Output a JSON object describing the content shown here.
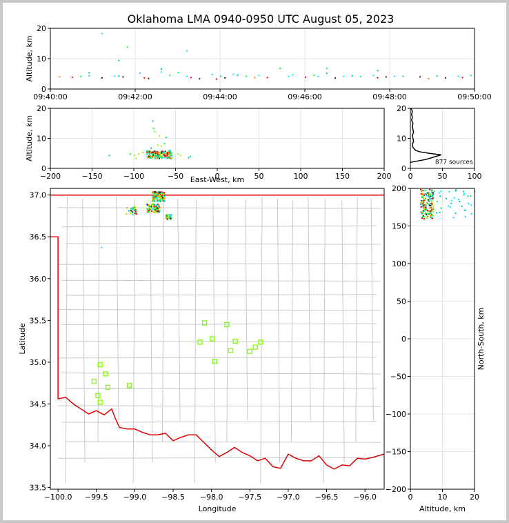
{
  "title": "Oklahoma LMA 0940-0950 UTC August 05, 2023",
  "colors": {
    "state_border": "#e00000",
    "county_lines": "#c8c8c8",
    "station_marker": "#7cfc00",
    "grid": "#e6e6e6",
    "source_palette": [
      "#00e5ff",
      "#00c8a0",
      "#00ff40",
      "#80ff00",
      "#c0e000",
      "#ff8000",
      "#ff0000",
      "#202020"
    ]
  },
  "chart_data": [
    {
      "id": "time_altitude",
      "type": "scatter",
      "ylabel": "Altitude, km",
      "ylim": [
        0,
        20
      ],
      "yticks": [
        "0",
        "10",
        "20"
      ],
      "xticks": [
        "09:40:00",
        "09:42:00",
        "09:44:00",
        "09:46:00",
        "09:48:00",
        "09:50:00"
      ],
      "grid": true,
      "points_minutes_after_0940": [
        [
          1.2,
          18.5
        ],
        [
          1.6,
          9.6
        ],
        [
          1.8,
          14
        ],
        [
          3.2,
          12.8
        ],
        [
          7.7,
          6.3
        ],
        [
          6.5,
          7.0
        ],
        [
          0.2,
          4.2
        ],
        [
          0.5,
          4.1
        ],
        [
          0.7,
          4.3
        ],
        [
          0.9,
          4.6
        ],
        [
          0.9,
          5.6
        ],
        [
          1.2,
          3.9
        ],
        [
          1.5,
          4.4
        ],
        [
          1.6,
          4.5
        ],
        [
          1.7,
          4.2
        ],
        [
          2.1,
          5.5
        ],
        [
          2.2,
          3.9
        ],
        [
          2.3,
          3.7
        ],
        [
          2.6,
          5.8
        ],
        [
          2.6,
          6.8
        ],
        [
          3.0,
          5.7
        ],
        [
          3.2,
          4.3
        ],
        [
          3.3,
          4.0
        ],
        [
          3.5,
          3.6
        ],
        [
          3.8,
          5.0
        ],
        [
          4.0,
          4.4
        ],
        [
          4.1,
          3.9
        ],
        [
          4.3,
          5.1
        ],
        [
          4.4,
          4.8
        ],
        [
          4.6,
          4.4
        ],
        [
          4.9,
          4.7
        ],
        [
          5.1,
          4.0
        ],
        [
          5.4,
          7.0
        ],
        [
          5.7,
          4.9
        ],
        [
          6.0,
          4.1
        ],
        [
          6.2,
          4.8
        ],
        [
          6.3,
          4.3
        ],
        [
          6.5,
          5.4
        ],
        [
          6.7,
          3.8
        ],
        [
          6.9,
          4.3
        ],
        [
          7.1,
          4.6
        ],
        [
          7.3,
          4.3
        ],
        [
          7.6,
          4.7
        ],
        [
          7.7,
          3.9
        ],
        [
          7.9,
          4.2
        ],
        [
          8.1,
          4.4
        ],
        [
          8.3,
          4.4
        ],
        [
          8.7,
          4.2
        ],
        [
          8.9,
          3.6
        ],
        [
          9.1,
          4.5
        ],
        [
          9.3,
          3.9
        ],
        [
          9.6,
          4.4
        ],
        [
          9.7,
          4.0
        ],
        [
          9.9,
          4.7
        ],
        [
          4.8,
          4.0
        ],
        [
          3.9,
          3.5
        ],
        [
          2.8,
          4.7
        ],
        [
          5.6,
          4.3
        ]
      ]
    },
    {
      "id": "ew_altitude",
      "type": "scatter",
      "xlabel": "East-West, km",
      "ylabel": "Altitude, km",
      "xlim": [
        -200,
        200
      ],
      "ylim": [
        0,
        20
      ],
      "xticks": [
        "−200",
        "−150",
        "−100",
        "−50",
        "0",
        "50",
        "100",
        "150",
        "200"
      ],
      "yticks": [
        "0",
        "10",
        "20"
      ],
      "grid": true,
      "points": [
        [
          -78,
          16
        ],
        [
          -77,
          13.5
        ],
        [
          -76,
          12.5
        ],
        [
          -70,
          11
        ],
        [
          -62,
          10.5
        ],
        [
          -64,
          8.5
        ],
        [
          -72,
          8
        ],
        [
          -68,
          7.6
        ],
        [
          -80,
          7
        ],
        [
          -85,
          6
        ],
        [
          -90,
          5.5
        ],
        [
          -95,
          5
        ],
        [
          -130,
          4.5
        ],
        [
          -105,
          5
        ],
        [
          -100,
          4.5
        ],
        [
          -98,
          3.5
        ],
        [
          -60,
          5.2
        ],
        [
          -55,
          4.4
        ],
        [
          -48,
          5
        ],
        [
          -45,
          4.5
        ],
        [
          -35,
          3.8
        ],
        [
          -33,
          4.2
        ],
        [
          -75,
          5.5
        ],
        [
          -66,
          5.8
        ],
        [
          -58,
          6.2
        ],
        [
          -82,
          4.8
        ],
        [
          -73,
          4.6
        ],
        [
          -63,
          4.2
        ],
        [
          -70,
          3.9
        ],
        [
          -79,
          4.2
        ]
      ],
      "cluster": {
        "x": [
          -85,
          -55
        ],
        "y": [
          3.5,
          6
        ]
      }
    },
    {
      "id": "altitude_histogram",
      "type": "line",
      "xlim": [
        0,
        100
      ],
      "ylim": [
        0,
        20
      ],
      "xticks": [
        "0",
        "50",
        "100"
      ],
      "yticks": [
        "0",
        "10",
        "20"
      ],
      "annotation": "877 sources",
      "profile": [
        [
          0,
          2
        ],
        [
          25,
          3
        ],
        [
          40,
          4
        ],
        [
          48,
          4.5
        ],
        [
          30,
          5
        ],
        [
          15,
          5.5
        ],
        [
          8,
          6
        ],
        [
          4,
          7
        ],
        [
          3,
          8
        ],
        [
          5,
          9
        ],
        [
          4,
          10
        ],
        [
          3,
          11
        ],
        [
          5,
          12
        ],
        [
          4,
          13
        ],
        [
          3,
          14
        ],
        [
          4,
          15
        ],
        [
          2,
          16
        ],
        [
          3,
          17
        ],
        [
          2,
          18
        ],
        [
          3,
          19
        ],
        [
          1,
          20
        ]
      ]
    },
    {
      "id": "plan_view",
      "type": "scatter",
      "xlabel": "Longitude",
      "ylabel": "Latitude",
      "xlim": [
        -100.1,
        -95.75
      ],
      "ylim": [
        33.48,
        37.08
      ],
      "xticks": [
        "−100.0",
        "−99.5",
        "−99.0",
        "−98.5",
        "−98.0",
        "−97.5",
        "−97.0",
        "−96.5",
        "−96.0"
      ],
      "yticks": [
        "33.5",
        "34.0",
        "34.5",
        "35.0",
        "35.5",
        "36.0",
        "36.5",
        "37.0"
      ],
      "stations": [
        [
          -98.09,
          35.47
        ],
        [
          -97.8,
          35.45
        ],
        [
          -98.15,
          35.24
        ],
        [
          -97.99,
          35.28
        ],
        [
          -97.69,
          35.25
        ],
        [
          -97.36,
          35.24
        ],
        [
          -97.43,
          35.18
        ],
        [
          -97.75,
          35.14
        ],
        [
          -97.5,
          35.13
        ],
        [
          -97.96,
          35.01
        ],
        [
          -99.45,
          34.97
        ],
        [
          -99.38,
          34.86
        ],
        [
          -99.53,
          34.77
        ],
        [
          -99.07,
          34.72
        ],
        [
          -99.35,
          34.7
        ],
        [
          -99.48,
          34.6
        ],
        [
          -99.45,
          34.52
        ]
      ],
      "source_clusters": [
        {
          "lon": [
            -98.78,
            -98.62
          ],
          "lat": [
            36.93,
            37.05
          ]
        },
        {
          "lon": [
            -98.85,
            -98.68
          ],
          "lat": [
            36.8,
            36.9
          ]
        },
        {
          "lon": [
            -99.12,
            -98.98
          ],
          "lat": [
            36.77,
            36.87
          ]
        },
        {
          "lon": [
            -98.6,
            -98.53
          ],
          "lat": [
            36.72,
            36.78
          ]
        }
      ]
    },
    {
      "id": "altitude_ns",
      "type": "scatter",
      "xlabel": "Altitude, km",
      "ylabel": "North-South, km",
      "xlim": [
        0,
        20
      ],
      "ylim": [
        -200,
        200
      ],
      "xticks": [
        "0",
        "10",
        "20"
      ],
      "yticks": [
        "−200",
        "−150",
        "−100",
        "−50",
        "0",
        "50",
        "100",
        "150",
        "200"
      ],
      "source_clusters": [
        {
          "alt": [
            3,
            7
          ],
          "ns": [
            160,
            200
          ]
        },
        {
          "alt": [
            7,
            20
          ],
          "ns": [
            160,
            200
          ]
        }
      ]
    }
  ]
}
